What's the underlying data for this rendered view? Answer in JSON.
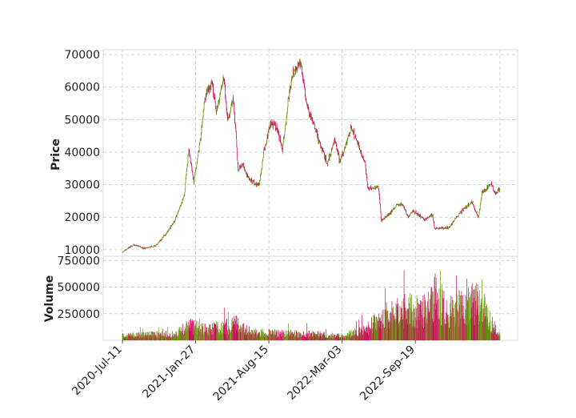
{
  "chart_data": [
    {
      "type": "candlestick",
      "ylabel": "Price",
      "yticks": [
        10000,
        20000,
        30000,
        40000,
        50000,
        60000,
        70000
      ],
      "ylim": [
        8000,
        71500
      ],
      "grid": true,
      "colors": {
        "up": "#6a9a10",
        "down": "#cc0a5c"
      },
      "anchors": [
        [
          "2020-07-11",
          9250
        ],
        [
          "2020-08-10",
          11600
        ],
        [
          "2020-09-10",
          10400
        ],
        [
          "2020-10-10",
          11300
        ],
        [
          "2020-11-10",
          15300
        ],
        [
          "2020-12-01",
          19000
        ],
        [
          "2020-12-27",
          26500
        ],
        [
          "2021-01-08",
          40500
        ],
        [
          "2021-01-22",
          31000
        ],
        [
          "2021-02-10",
          44800
        ],
        [
          "2021-02-21",
          57000
        ],
        [
          "2021-03-13",
          61000
        ],
        [
          "2021-03-25",
          52000
        ],
        [
          "2021-04-13",
          63500
        ],
        [
          "2021-04-25",
          49000
        ],
        [
          "2021-05-10",
          57000
        ],
        [
          "2021-05-23",
          34800
        ],
        [
          "2021-06-05",
          36000
        ],
        [
          "2021-06-22",
          31500
        ],
        [
          "2021-07-20",
          29800
        ],
        [
          "2021-08-01",
          40000
        ],
        [
          "2021-08-20",
          49000
        ],
        [
          "2021-09-07",
          46800
        ],
        [
          "2021-09-21",
          40700
        ],
        [
          "2021-10-06",
          55000
        ],
        [
          "2021-10-20",
          65000
        ],
        [
          "2021-11-10",
          68000
        ],
        [
          "2021-11-26",
          54500
        ],
        [
          "2021-12-20",
          46800
        ],
        [
          "2022-01-22",
          36200
        ],
        [
          "2022-02-10",
          44000
        ],
        [
          "2022-02-25",
          37000
        ],
        [
          "2022-03-28",
          47500
        ],
        [
          "2022-04-20",
          41000
        ],
        [
          "2022-05-05",
          36000
        ],
        [
          "2022-05-12",
          29000
        ],
        [
          "2022-06-10",
          29300
        ],
        [
          "2022-06-18",
          19000
        ],
        [
          "2022-07-10",
          21000
        ],
        [
          "2022-07-28",
          23500
        ],
        [
          "2022-08-15",
          24200
        ],
        [
          "2022-08-30",
          20000
        ],
        [
          "2022-09-12",
          22000
        ],
        [
          "2022-10-15",
          19200
        ],
        [
          "2022-11-05",
          20800
        ],
        [
          "2022-11-10",
          16500
        ],
        [
          "2022-12-20",
          16800
        ],
        [
          "2023-01-15",
          21000
        ],
        [
          "2023-02-20",
          24500
        ],
        [
          "2023-03-10",
          20000
        ],
        [
          "2023-03-20",
          27500
        ],
        [
          "2023-04-14",
          30200
        ],
        [
          "2023-04-23",
          27500
        ],
        [
          "2023-05-08",
          28500
        ]
      ]
    },
    {
      "type": "bar",
      "ylabel": "Volume",
      "yticks": [
        250000,
        500000,
        750000
      ],
      "ylim": [
        0,
        790000
      ],
      "grid": true,
      "colors": {
        "up": "#6a9a10",
        "down": "#cc0a5c"
      },
      "anchors": [
        [
          "2020-07-11",
          50000
        ],
        [
          "2020-12-01",
          70000
        ],
        [
          "2021-01-10",
          150000
        ],
        [
          "2021-03-01",
          110000
        ],
        [
          "2021-05-19",
          170000
        ],
        [
          "2021-07-01",
          80000
        ],
        [
          "2021-12-01",
          70000
        ],
        [
          "2022-03-01",
          45000
        ],
        [
          "2022-05-10",
          120000
        ],
        [
          "2022-06-20",
          250000
        ],
        [
          "2022-09-01",
          330000
        ],
        [
          "2022-10-05",
          300000
        ],
        [
          "2022-11-10",
          470000
        ],
        [
          "2022-12-20",
          300000
        ],
        [
          "2023-02-01",
          360000
        ],
        [
          "2023-03-20",
          420000
        ],
        [
          "2023-04-10",
          200000
        ],
        [
          "2023-05-08",
          60000
        ]
      ],
      "xticks": [
        "2020-Jul-11",
        "2021-Jan-27",
        "2021-Aug-15",
        "2022-Mar-03",
        "2022-Sep-19"
      ],
      "xlim": [
        "2020-07-11",
        "2023-05-08"
      ]
    }
  ]
}
